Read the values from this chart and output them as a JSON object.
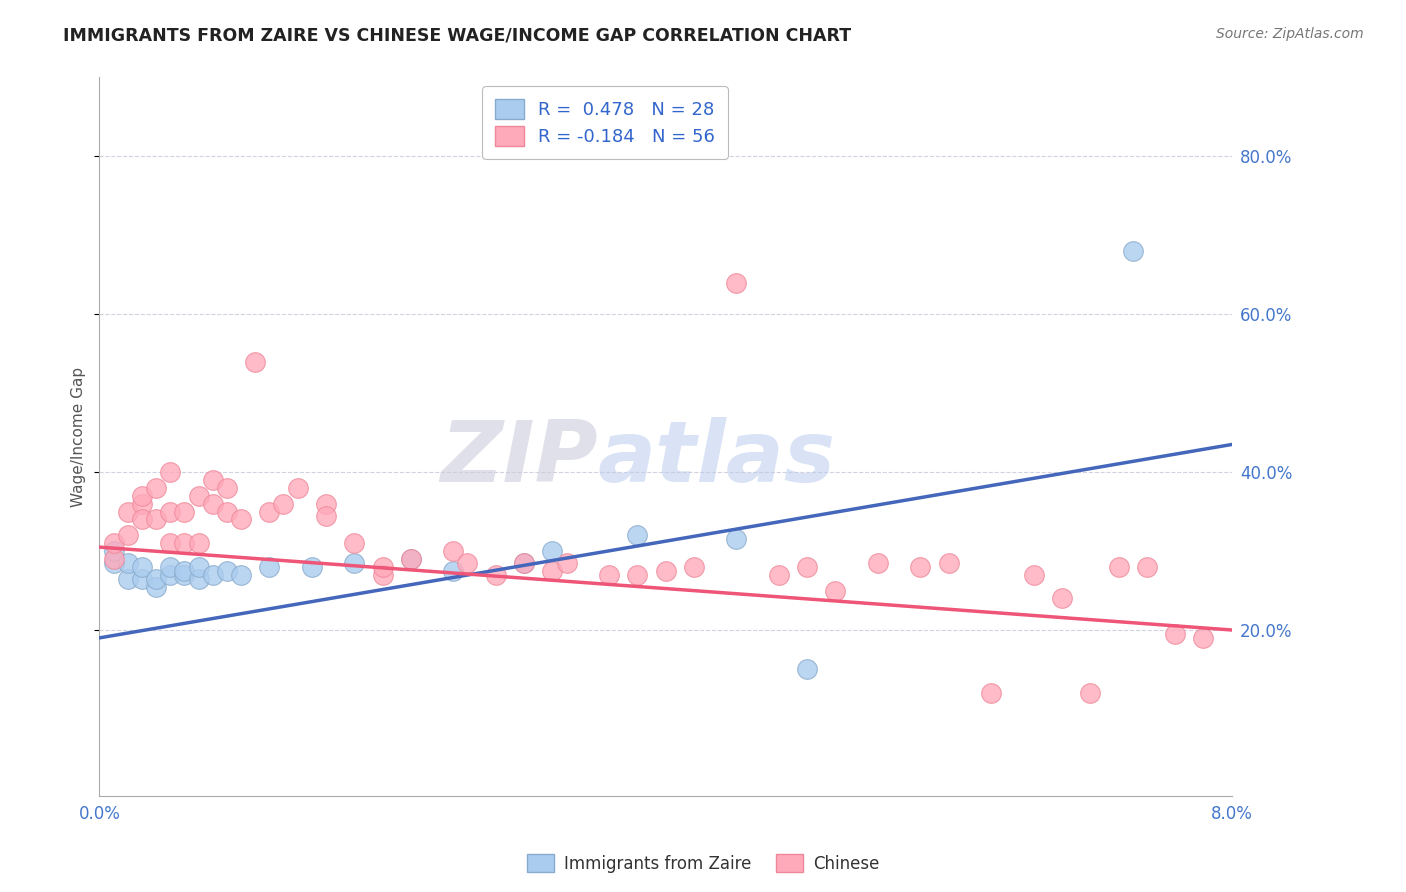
{
  "title": "IMMIGRANTS FROM ZAIRE VS CHINESE WAGE/INCOME GAP CORRELATION CHART",
  "source": "Source: ZipAtlas.com",
  "ylabel": "Wage/Income Gap",
  "yticks": [
    0.2,
    0.4,
    0.6,
    0.8
  ],
  "ytick_labels": [
    "20.0%",
    "40.0%",
    "60.0%",
    "80.0%"
  ],
  "xlim": [
    0.0,
    0.08
  ],
  "ylim": [
    -0.01,
    0.9
  ],
  "blue_color": "#AACCEE",
  "pink_color": "#FFAABB",
  "blue_edge_color": "#88AACC",
  "pink_edge_color": "#EE8899",
  "blue_line_color": "#4466BB",
  "pink_line_color": "#EE5577",
  "blue_legend_label": "R =  0.478   N = 28",
  "pink_legend_label": "R = -0.184   N = 56",
  "legend_xlabel1": "Immigrants from Zaire",
  "legend_xlabel2": "Chinese",
  "legend_text_color": "#3366CC",
  "axis_text_color": "#4477CC",
  "title_color": "#222222",
  "source_color": "#777777",
  "grid_color": "#CCCCDD",
  "blue_line_y0": 0.19,
  "blue_line_y1": 0.435,
  "pink_line_y0": 0.305,
  "pink_line_y1": 0.2,
  "blue_x": [
    0.001,
    0.001,
    0.002,
    0.002,
    0.003,
    0.003,
    0.004,
    0.004,
    0.005,
    0.005,
    0.006,
    0.006,
    0.007,
    0.007,
    0.008,
    0.009,
    0.01,
    0.012,
    0.015,
    0.018,
    0.022,
    0.025,
    0.03,
    0.032,
    0.038,
    0.045,
    0.05,
    0.073
  ],
  "blue_y": [
    0.285,
    0.3,
    0.265,
    0.285,
    0.265,
    0.28,
    0.255,
    0.265,
    0.27,
    0.28,
    0.27,
    0.275,
    0.265,
    0.28,
    0.27,
    0.275,
    0.27,
    0.28,
    0.28,
    0.285,
    0.29,
    0.275,
    0.285,
    0.3,
    0.32,
    0.315,
    0.15,
    0.68
  ],
  "pink_x": [
    0.001,
    0.001,
    0.002,
    0.002,
    0.003,
    0.003,
    0.003,
    0.004,
    0.004,
    0.005,
    0.005,
    0.005,
    0.006,
    0.006,
    0.007,
    0.007,
    0.008,
    0.008,
    0.009,
    0.009,
    0.01,
    0.011,
    0.012,
    0.013,
    0.014,
    0.016,
    0.016,
    0.018,
    0.02,
    0.02,
    0.022,
    0.025,
    0.026,
    0.028,
    0.03,
    0.032,
    0.033,
    0.036,
    0.038,
    0.04,
    0.042,
    0.045,
    0.048,
    0.05,
    0.052,
    0.055,
    0.058,
    0.06,
    0.063,
    0.066,
    0.068,
    0.07,
    0.072,
    0.074,
    0.076,
    0.078
  ],
  "pink_y": [
    0.29,
    0.31,
    0.35,
    0.32,
    0.36,
    0.37,
    0.34,
    0.34,
    0.38,
    0.31,
    0.35,
    0.4,
    0.31,
    0.35,
    0.31,
    0.37,
    0.36,
    0.39,
    0.35,
    0.38,
    0.34,
    0.54,
    0.35,
    0.36,
    0.38,
    0.36,
    0.345,
    0.31,
    0.27,
    0.28,
    0.29,
    0.3,
    0.285,
    0.27,
    0.285,
    0.275,
    0.285,
    0.27,
    0.27,
    0.275,
    0.28,
    0.64,
    0.27,
    0.28,
    0.25,
    0.285,
    0.28,
    0.285,
    0.12,
    0.27,
    0.24,
    0.12,
    0.28,
    0.28,
    0.195,
    0.19
  ]
}
